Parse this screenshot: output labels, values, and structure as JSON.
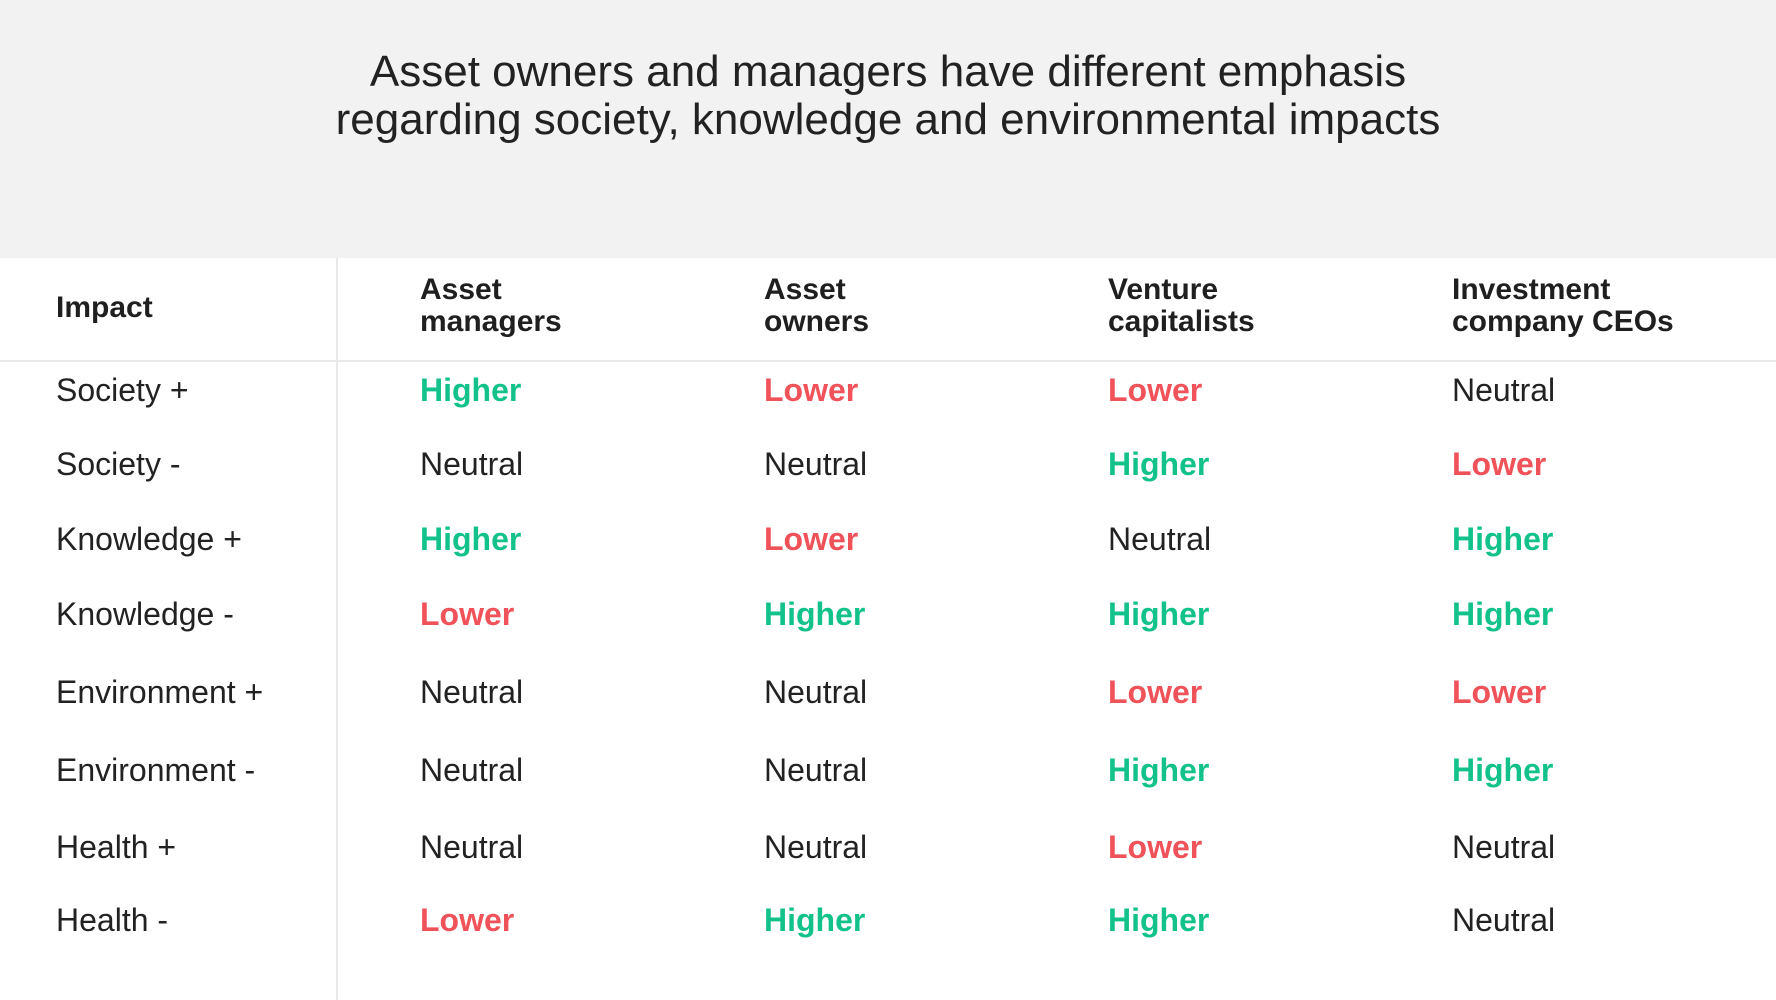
{
  "title": "Asset owners and managers have different emphasis regarding society, knowledge and environmental impacts",
  "colors": {
    "Higher": "#12c28a",
    "Lower": "#f0525a",
    "Neutral": "#222222"
  },
  "table": {
    "headers": [
      "Impact",
      "Asset managers",
      "Asset owners",
      "Venture capitalists",
      "Investment company CEOs"
    ],
    "header_lines": [
      [
        "Impact"
      ],
      [
        "Asset",
        "managers"
      ],
      [
        "Asset",
        "owners"
      ],
      [
        "Venture",
        "capitalists"
      ],
      [
        "Investment",
        "company CEOs"
      ]
    ],
    "rows": [
      {
        "impact": "Society +",
        "values": [
          "Higher",
          "Lower",
          "Lower",
          "Neutral"
        ]
      },
      {
        "impact": "Society -",
        "values": [
          "Neutral",
          "Neutral",
          "Higher",
          "Lower"
        ]
      },
      {
        "impact": "Knowledge +",
        "values": [
          "Higher",
          "Lower",
          "Neutral",
          "Higher"
        ]
      },
      {
        "impact": "Knowledge -",
        "values": [
          "Lower",
          "Higher",
          "Higher",
          "Higher"
        ]
      },
      {
        "impact": "Environment +",
        "values": [
          "Neutral",
          "Neutral",
          "Lower",
          "Lower"
        ]
      },
      {
        "impact": "Environment -",
        "values": [
          "Neutral",
          "Neutral",
          "Higher",
          "Higher"
        ]
      },
      {
        "impact": "Health +",
        "values": [
          "Neutral",
          "Neutral",
          "Lower",
          "Neutral"
        ]
      },
      {
        "impact": "Health -",
        "values": [
          "Lower",
          "Higher",
          "Higher",
          "Neutral"
        ]
      }
    ]
  }
}
